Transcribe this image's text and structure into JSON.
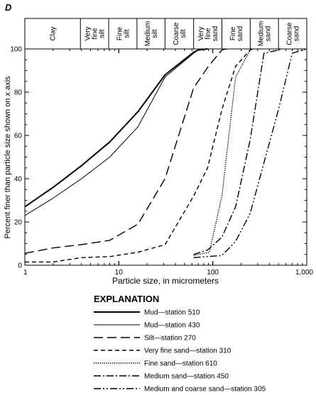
{
  "chart_data": {
    "type": "line",
    "panel_letter": "D",
    "x_scale": "log",
    "xlim": [
      1,
      1000
    ],
    "ylim": [
      0,
      100
    ],
    "x_ticks": [
      {
        "value": 1,
        "label": "1"
      },
      {
        "value": 10,
        "label": "10"
      },
      {
        "value": 100,
        "label": "100"
      },
      {
        "value": 1000,
        "label": "1,000"
      }
    ],
    "y_ticks": [
      {
        "value": 0,
        "label": "0"
      },
      {
        "value": 20,
        "label": "20"
      },
      {
        "value": 40,
        "label": "40"
      },
      {
        "value": 60,
        "label": "60"
      },
      {
        "value": 80,
        "label": "80"
      },
      {
        "value": 100,
        "label": "100"
      }
    ],
    "xlabel": "Particle size, in micrometers",
    "ylabel_prefix": "Percent finer than particle size shown on ",
    "ylabel_italic": "x",
    "ylabel_suffix": " axis",
    "size_classes": [
      {
        "lines": [
          "Clay"
        ],
        "from": 1,
        "to": 3.9
      },
      {
        "lines": [
          "Very",
          "fine",
          "silt"
        ],
        "from": 3.9,
        "to": 7.8
      },
      {
        "lines": [
          "Fine",
          "silt"
        ],
        "from": 7.8,
        "to": 15.6
      },
      {
        "lines": [
          "Medium",
          "silt"
        ],
        "from": 15.6,
        "to": 31
      },
      {
        "lines": [
          "Coarse",
          "silt"
        ],
        "from": 31,
        "to": 62.5
      },
      {
        "lines": [
          "Very",
          "fine",
          "sand"
        ],
        "from": 62.5,
        "to": 125
      },
      {
        "lines": [
          "Fine",
          "sand"
        ],
        "from": 125,
        "to": 250
      },
      {
        "lines": [
          "Medium",
          "sand"
        ],
        "from": 250,
        "to": 500
      },
      {
        "lines": [
          "Coarse",
          "sand"
        ],
        "from": 500,
        "to": 1000
      }
    ],
    "legend_title": "EXPLANATION",
    "series": [
      {
        "name": "Mud—station 510",
        "style": "thick-solid",
        "x": [
          1,
          2,
          4,
          8,
          16,
          31,
          62.5,
          70,
          88
        ],
        "y": [
          27,
          36,
          46,
          57,
          71,
          88,
          98.5,
          99.5,
          100
        ]
      },
      {
        "name": "Mud—station 430",
        "style": "thin-solid",
        "x": [
          1,
          2,
          4,
          8,
          16,
          31,
          62.5,
          70,
          88
        ],
        "y": [
          23,
          31,
          40,
          50,
          64,
          87,
          98,
          99.5,
          100
        ]
      },
      {
        "name": "Silt—station 270",
        "style": "long-dash",
        "x": [
          1,
          2,
          4,
          8,
          16,
          31,
          62.5,
          90,
          125,
          140
        ],
        "y": [
          5.5,
          8,
          9.5,
          11.5,
          19,
          40,
          82,
          92,
          99.5,
          100
        ]
      },
      {
        "name": "Very fine sand—station 310",
        "style": "short-dash",
        "x": [
          1,
          2,
          4,
          8,
          16,
          31,
          62.5,
          88,
          125,
          175,
          250,
          265
        ],
        "y": [
          1.5,
          1.5,
          3.5,
          4,
          6,
          9.5,
          32,
          45,
          72,
          92,
          99.5,
          100
        ]
      },
      {
        "name": "Fine sand—station 610",
        "style": "dotted",
        "x": [
          62.5,
          92,
          125,
          175,
          250,
          265
        ],
        "y": [
          4.5,
          6,
          32,
          87,
          99.5,
          100
        ]
      },
      {
        "name": "Medium sand—station 450",
        "style": "dash-dot",
        "x": [
          62.5,
          88,
          125,
          175,
          250,
          350,
          500,
          530
        ],
        "y": [
          5,
          7,
          13,
          27,
          58,
          98,
          99.5,
          100
        ]
      },
      {
        "name": "Medium and coarse sand—station 305",
        "style": "dash-dot-dot",
        "x": [
          62.5,
          88,
          125,
          175,
          250,
          500,
          700,
          1000
        ],
        "y": [
          3.5,
          4,
          4.5,
          11,
          24,
          72,
          98,
          100
        ]
      }
    ]
  }
}
